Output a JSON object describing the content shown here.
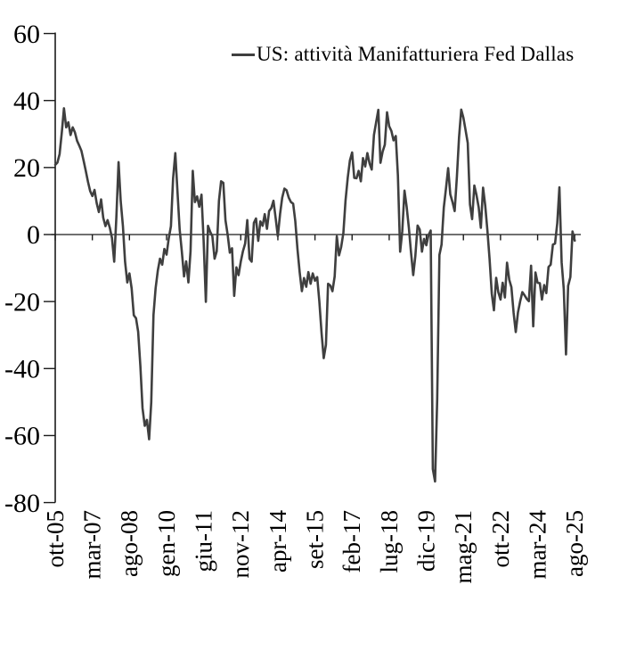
{
  "chart_data": {
    "type": "line",
    "title": "",
    "legend": "US: attività Manifatturiera Fed Dallas",
    "legend_position": "top",
    "line_color": "#3f3f3f",
    "axis_color": "#1a1a1a",
    "background": "#ffffff",
    "ylim": [
      -80,
      60
    ],
    "y_ticks": [
      60,
      40,
      20,
      0,
      -20,
      -40,
      -60,
      -80
    ],
    "x_tick_labels": [
      "ott-05",
      "mar-07",
      "ago-08",
      "gen-10",
      "giu-11",
      "nov-12",
      "apr-14",
      "set-15",
      "feb-17",
      "lug-18",
      "dic-19",
      "mag-21",
      "ott-22",
      "mar-24",
      "ago-25"
    ],
    "x_tick_every": 17,
    "grid": false,
    "series": [
      {
        "name": "US: attività Manifatturiera Fed Dallas",
        "frequency": "monthly",
        "start": "ott-05",
        "end": "ago-25",
        "values": [
          20.8,
          21.5,
          24.0,
          30.5,
          37.7,
          32.0,
          33.5,
          29.7,
          32.0,
          30.5,
          28.0,
          26.5,
          25.0,
          22.0,
          19.0,
          15.7,
          13.0,
          11.5,
          13.3,
          9.3,
          6.7,
          10.5,
          5.0,
          2.5,
          4.3,
          2.0,
          -1.0,
          -8.1,
          5.0,
          21.6,
          10.0,
          2.5,
          -8.1,
          -14.3,
          -11.6,
          -16.1,
          -24.1,
          -25.0,
          -29.0,
          -39.3,
          -51.8,
          -57.1,
          -55.3,
          -61.1,
          -50.0,
          -24.0,
          -16.0,
          -10.7,
          -7.2,
          -9.0,
          -4.3,
          -6.0,
          -1.2,
          2.5,
          16.7,
          24.3,
          13.0,
          1.5,
          -5.0,
          -12.5,
          -8.0,
          -14.3,
          -5.0,
          19.0,
          9.7,
          11.4,
          8.3,
          11.9,
          -1.9,
          -20.1,
          2.6,
          0.8,
          -0.5,
          -7.2,
          -5.0,
          10.1,
          15.9,
          15.4,
          4.3,
          -0.1,
          -5.4,
          -4.1,
          -18.3,
          -9.8,
          -12.1,
          -8.1,
          -5.0,
          -2.7,
          4.3,
          -7.2,
          -8.1,
          3.5,
          4.8,
          -1.9,
          3.9,
          2.6,
          6.1,
          1.7,
          7.0,
          7.9,
          10.1,
          4.8,
          -0.5,
          6.1,
          11.0,
          13.7,
          13.2,
          11.0,
          9.7,
          9.2,
          4.0,
          -4.5,
          -11.2,
          -16.9,
          -13.0,
          -15.6,
          -11.2,
          -14.7,
          -11.6,
          -13.8,
          -12.7,
          -20.0,
          -29.4,
          -36.9,
          -32.9,
          -14.7,
          -15.2,
          -16.9,
          -12.5,
          -0.5,
          -6.2,
          -3.7,
          0.5,
          10.2,
          17.0,
          22.1,
          24.5,
          16.9,
          16.8,
          19.0,
          15.9,
          22.8,
          20.3,
          24.3,
          21.2,
          19.4,
          29.7,
          33.4,
          37.2,
          21.4,
          24.8,
          26.8,
          36.5,
          32.3,
          30.9,
          28.1,
          29.4,
          17.6,
          -5.1,
          1.0,
          13.1,
          8.3,
          2.0,
          -5.3,
          -12.1,
          -6.3,
          2.7,
          1.5,
          -5.1,
          -1.3,
          -3.2,
          -0.2,
          1.2,
          -70.0,
          -73.7,
          -49.2,
          -6.1,
          -3.0,
          8.0,
          13.6,
          19.8,
          12.0,
          9.7,
          7.0,
          17.2,
          28.9,
          37.3,
          34.9,
          31.1,
          27.3,
          9.0,
          4.6,
          14.6,
          11.8,
          8.1,
          2.0,
          14.0,
          8.7,
          1.1,
          -7.3,
          -17.7,
          -22.6,
          -12.9,
          -17.2,
          -19.4,
          -14.4,
          -18.8,
          -8.4,
          -13.5,
          -15.7,
          -23.4,
          -29.1,
          -23.2,
          -20.0,
          -17.2,
          -18.1,
          -19.2,
          -19.9,
          -9.3,
          -27.4,
          -11.3,
          -14.4,
          -14.5,
          -19.4,
          -15.1,
          -17.5,
          -9.7,
          -9.0,
          -3.0,
          -2.7,
          3.4,
          14.1,
          -8.3,
          -16.3,
          -35.8,
          -15.3,
          -12.7,
          0.9,
          -1.8
        ]
      }
    ]
  },
  "layout_values": {
    "line_width": 2.6
  }
}
